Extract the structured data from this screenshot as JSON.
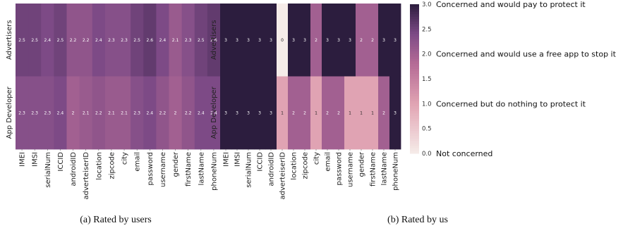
{
  "chart_data": [
    {
      "type": "heatmap",
      "caption": "(a)  Rated by users",
      "rows": [
        "Advertisers",
        "App Developer"
      ],
      "columns": [
        "IMEI",
        "IMSI",
        "serialNum",
        "ICCID",
        "androidID",
        "adverteiserID",
        "location",
        "zipcode",
        "city",
        "email",
        "password",
        "username",
        "gender",
        "firstName",
        "lastName",
        "phoneNum"
      ],
      "values": [
        [
          2.5,
          2.5,
          2.4,
          2.5,
          2.2,
          2.2,
          2.4,
          2.3,
          2.3,
          2.5,
          2.6,
          2.4,
          2.1,
          2.3,
          2.5,
          2.6
        ],
        [
          2.3,
          2.3,
          2.3,
          2.4,
          2,
          2.1,
          2.2,
          2.1,
          2.1,
          2.3,
          2.4,
          2.2,
          2,
          2.2,
          2.4,
          2.4
        ]
      ],
      "vmin": 0,
      "vmax": 3
    },
    {
      "type": "heatmap",
      "caption": "(b)  Rated by us",
      "rows": [
        "Advertisers",
        "App Developer"
      ],
      "columns": [
        "IMEI",
        "IMSI",
        "serialNum",
        "ICCID",
        "androidID",
        "adverteiserID",
        "location",
        "zipcode",
        "city",
        "email",
        "password",
        "username",
        "gender",
        "firstName",
        "lastName",
        "phoneNum"
      ],
      "values": [
        [
          3,
          3,
          3,
          3,
          3,
          0,
          3,
          3,
          2,
          3,
          3,
          3,
          2,
          2,
          3,
          3
        ],
        [
          3,
          3,
          3,
          3,
          3,
          1,
          2,
          2,
          1,
          2,
          2,
          1,
          1,
          1,
          2,
          3
        ]
      ],
      "vmin": 0,
      "vmax": 3
    }
  ],
  "colorbar": {
    "ticks": [
      "0.0",
      "0.5",
      "1.0",
      "1.5",
      "2.0",
      "2.5",
      "3.0"
    ],
    "labels": [
      {
        "value": 3,
        "text": "Concerned and would pay to protect it"
      },
      {
        "value": 2,
        "text": "Concerned and would use a free app to stop it"
      },
      {
        "value": 1,
        "text": "Concerned but do nothing to protect it"
      },
      {
        "value": 0,
        "text": "Not concerned"
      }
    ],
    "colors": {
      "low": "#f6ece9",
      "mid_low": "#e1a4b3",
      "mid": "#b56b96",
      "mid_high": "#7d4a86",
      "high": "#2c1d3e"
    }
  }
}
